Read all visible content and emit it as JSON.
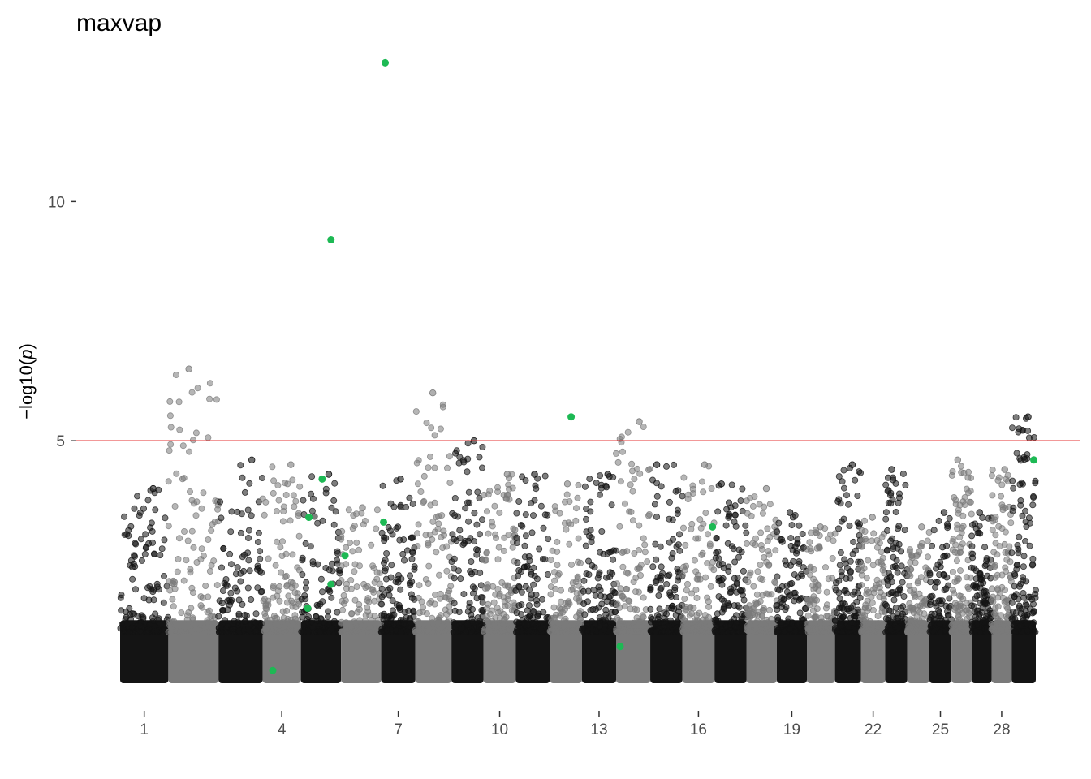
{
  "chart_data": {
    "type": "scatter",
    "title": "maxvap",
    "ylabel_prefix": "−log10(",
    "ylabel_var": "p",
    "ylabel_suffix": ")",
    "yticks": [
      5,
      10
    ],
    "ylim": [
      0,
      14.5
    ],
    "threshold": 5,
    "chromosome_ticks": [
      "1",
      "4",
      "7",
      "10",
      "13",
      "16",
      "19",
      "22",
      "25",
      "28"
    ],
    "chromosomes": [
      {
        "chr": 1,
        "start": 0,
        "end": 120,
        "max": 4.0
      },
      {
        "chr": 2,
        "start": 120,
        "end": 245,
        "max": 6.5
      },
      {
        "chr": 3,
        "start": 245,
        "end": 355,
        "max": 4.6
      },
      {
        "chr": 4,
        "start": 355,
        "end": 450,
        "max": 4.5
      },
      {
        "chr": 5,
        "start": 450,
        "end": 550,
        "max": 4.3
      },
      {
        "chr": 6,
        "start": 550,
        "end": 650,
        "max": 3.6
      },
      {
        "chr": 7,
        "start": 650,
        "end": 735,
        "max": 4.2
      },
      {
        "chr": 8,
        "start": 735,
        "end": 825,
        "max": 6.0
      },
      {
        "chr": 9,
        "start": 825,
        "end": 905,
        "max": 5.0
      },
      {
        "chr": 10,
        "start": 905,
        "end": 985,
        "max": 4.3
      },
      {
        "chr": 11,
        "start": 985,
        "end": 1070,
        "max": 4.3
      },
      {
        "chr": 12,
        "start": 1070,
        "end": 1150,
        "max": 4.1
      },
      {
        "chr": 13,
        "start": 1150,
        "end": 1235,
        "max": 4.3
      },
      {
        "chr": 14,
        "start": 1235,
        "end": 1320,
        "max": 5.4
      },
      {
        "chr": 15,
        "start": 1320,
        "end": 1400,
        "max": 4.5
      },
      {
        "chr": 16,
        "start": 1400,
        "end": 1480,
        "max": 4.5
      },
      {
        "chr": 17,
        "start": 1480,
        "end": 1560,
        "max": 4.1
      },
      {
        "chr": 18,
        "start": 1560,
        "end": 1635,
        "max": 4.0
      },
      {
        "chr": 19,
        "start": 1635,
        "end": 1710,
        "max": 3.5
      },
      {
        "chr": 20,
        "start": 1710,
        "end": 1780,
        "max": 3.2
      },
      {
        "chr": 21,
        "start": 1780,
        "end": 1845,
        "max": 4.5
      },
      {
        "chr": 22,
        "start": 1845,
        "end": 1905,
        "max": 3.4
      },
      {
        "chr": 23,
        "start": 1905,
        "end": 1960,
        "max": 4.4
      },
      {
        "chr": 24,
        "start": 1960,
        "end": 2015,
        "max": 3.2
      },
      {
        "chr": 25,
        "start": 2015,
        "end": 2070,
        "max": 3.5
      },
      {
        "chr": 26,
        "start": 2070,
        "end": 2120,
        "max": 4.6
      },
      {
        "chr": 27,
        "start": 2120,
        "end": 2170,
        "max": 3.5
      },
      {
        "chr": 28,
        "start": 2170,
        "end": 2220,
        "max": 4.4
      },
      {
        "chr": 29,
        "start": 2220,
        "end": 2280,
        "max": 5.5
      }
    ],
    "highlighted_points": [
      {
        "x": 660,
        "y": 12.9
      },
      {
        "x": 525,
        "y": 9.2
      },
      {
        "x": 1123,
        "y": 5.5
      },
      {
        "x": 2275,
        "y": 4.6
      },
      {
        "x": 503,
        "y": 4.2
      },
      {
        "x": 470,
        "y": 3.4
      },
      {
        "x": 656,
        "y": 3.3
      },
      {
        "x": 1475,
        "y": 3.2
      },
      {
        "x": 560,
        "y": 2.6
      },
      {
        "x": 525,
        "y": 2.0
      },
      {
        "x": 467,
        "y": 1.5
      },
      {
        "x": 380,
        "y": 0.2
      },
      {
        "x": 1245,
        "y": 0.7
      }
    ],
    "colors": {
      "odd": "#141414",
      "even": "#7a7a7a",
      "highlight": "#1db954",
      "threshold": "#e53030"
    },
    "grid": false
  }
}
